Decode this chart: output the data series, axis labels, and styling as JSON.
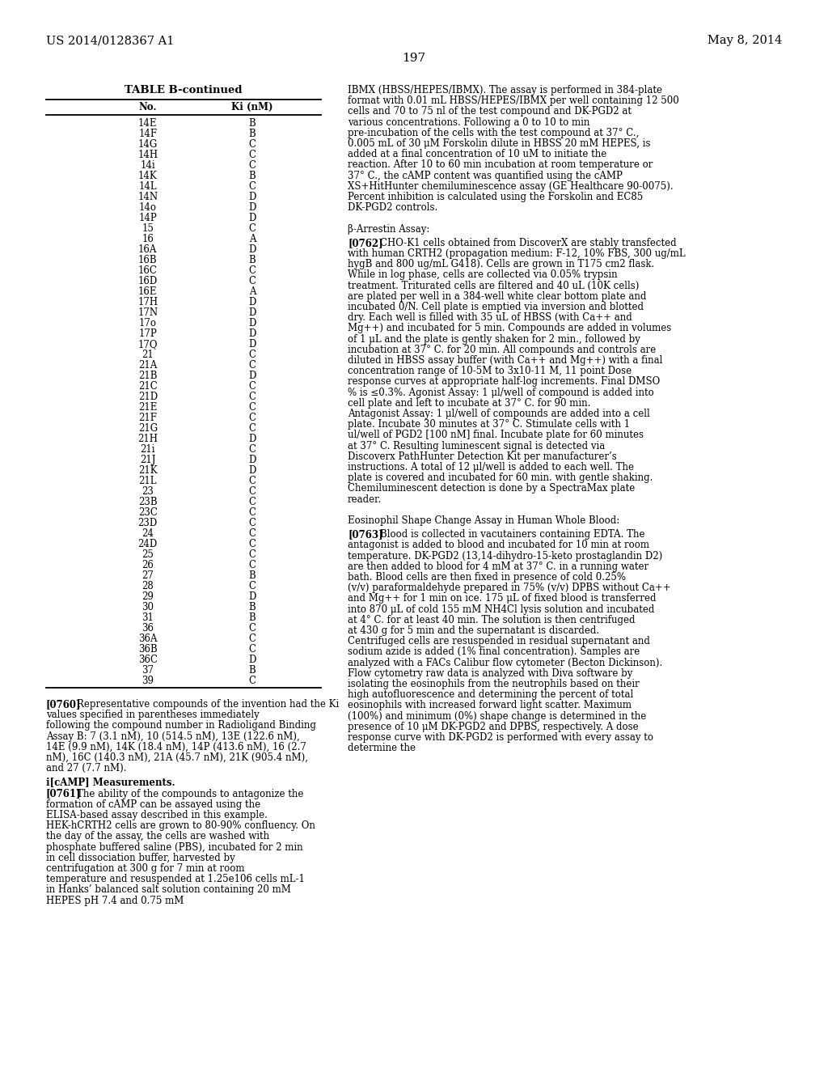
{
  "header_left": "US 2014/0128367 A1",
  "header_right": "May 8, 2014",
  "page_number": "197",
  "table_title": "TABLE B-continued",
  "col1_header": "No.",
  "col2_header": "Ki (nM)",
  "table_data": [
    [
      "14E",
      "B"
    ],
    [
      "14F",
      "B"
    ],
    [
      "14G",
      "C"
    ],
    [
      "14H",
      "C"
    ],
    [
      "14i",
      "C"
    ],
    [
      "14K",
      "B"
    ],
    [
      "14L",
      "C"
    ],
    [
      "14N",
      "D"
    ],
    [
      "14o",
      "D"
    ],
    [
      "14P",
      "D"
    ],
    [
      "15",
      "C"
    ],
    [
      "16",
      "A"
    ],
    [
      "16A",
      "D"
    ],
    [
      "16B",
      "B"
    ],
    [
      "16C",
      "C"
    ],
    [
      "16D",
      "C"
    ],
    [
      "16E",
      "A"
    ],
    [
      "17H",
      "D"
    ],
    [
      "17N",
      "D"
    ],
    [
      "17o",
      "D"
    ],
    [
      "17P",
      "D"
    ],
    [
      "17Q",
      "D"
    ],
    [
      "21",
      "C"
    ],
    [
      "21A",
      "C"
    ],
    [
      "21B",
      "D"
    ],
    [
      "21C",
      "C"
    ],
    [
      "21D",
      "C"
    ],
    [
      "21E",
      "C"
    ],
    [
      "21F",
      "C"
    ],
    [
      "21G",
      "C"
    ],
    [
      "21H",
      "D"
    ],
    [
      "21i",
      "C"
    ],
    [
      "21J",
      "D"
    ],
    [
      "21K",
      "D"
    ],
    [
      "21L",
      "C"
    ],
    [
      "23",
      "C"
    ],
    [
      "23B",
      "C"
    ],
    [
      "23C",
      "C"
    ],
    [
      "23D",
      "C"
    ],
    [
      "24",
      "C"
    ],
    [
      "24D",
      "C"
    ],
    [
      "25",
      "C"
    ],
    [
      "26",
      "C"
    ],
    [
      "27",
      "B"
    ],
    [
      "28",
      "C"
    ],
    [
      "29",
      "D"
    ],
    [
      "30",
      "B"
    ],
    [
      "31",
      "B"
    ],
    [
      "36",
      "C"
    ],
    [
      "36A",
      "C"
    ],
    [
      "36B",
      "C"
    ],
    [
      "36C",
      "D"
    ],
    [
      "37",
      "B"
    ],
    [
      "39",
      "C"
    ]
  ],
  "right_col_top_text": "IBMX (HBSS/HEPES/IBMX). The assay is performed in 384-plate format with 0.01 mL HBSS/HEPES/IBMX per well containing 12 500 cells and 70 to 75 nl of the test compound and DK-PGD2 at various concentrations. Following a 0 to 10 to min pre-incubation of the cells with the test compound at 37° C., 0.005 mL of 30 μM Forskolin dilute in HBSS 20 mM HEPES, is added at a final concentration of 10 uM to initiate the reaction. After 10 to 60 min incubation at room temperature or 37° C., the cAMP content was quantified using the cAMP XS+HitHunter chemiluminescence assay (GE Healthcare 90-0075). Percent inhibition is calculated using the Forskolin and EC85 DK-PGD2 controls.",
  "beta_arrestin_header": "β-Arrestin Assay:",
  "p762_label": "[0762]",
  "p762_text": "CHO-K1 cells obtained from DiscoverX are stably transfected with human CRTH2 (propagation medium: F-12, 10% FBS, 300 ug/mL hygB and 800 ug/mL G418). Cells are grown in T175 cm2 flask. While in log phase, cells are collected via 0.05% trypsin treatment. Triturated cells are filtered and 40 uL (10K cells) are plated per well in a 384-well white clear bottom plate and incubated 0/N. Cell plate is emptied via inversion and blotted dry. Each well is filled with 35 uL of HBSS (with Ca++ and Mg++) and incubated for 5 min. Compounds are added in volumes of 1 μL and the plate is gently shaken for 2 min., followed by incubation at 37° C. for 20 min. All compounds and controls are diluted in HBSS assay buffer (with Ca++ and Mg++) with a final concentration range of 10-5M to 3x10-11 M, 11 point Dose response curves at appropriate half-log increments. Final DMSO % is ≤0.3%. Agonist Assay: 1 μl/well of compound is added into cell plate and left to incubate at 37° C. for 90 min. Antagonist Assay: 1 μl/well of compounds are added into a cell plate. Incubate 30 minutes at 37° C. Stimulate cells with 1 ul/well of PGD2 [100 nM] final. Incubate plate for 60 minutes at 37° C. Resulting luminescent signal is detected via Discoverx PathHunter Detection Kit per manufacturer’s instructions. A total of 12 μl/well is added to each well. The plate is covered and incubated for 60 min. with gentle shaking. Chemiluminescent detection is done by a SpectraMax plate reader.",
  "eosinophil_header": "Eosinophil Shape Change Assay in Human Whole Blood:",
  "p763_label": "[0763]",
  "p763_text": "Blood is collected in vacutainers containing EDTA. The antagonist is added to blood and incubated for 10 min at room temperature. DK-PGD2 (13,14-dihydro-15-keto prostaglandin D2) are then added to blood for 4 mM at 37° C. in a running water bath. Blood cells are then fixed in presence of cold 0.25% (v/v) paraformaldehyde prepared in 75% (v/v) DPBS without Ca++ and Mg++ for 1 min on ice. 175 μL of fixed blood is transferred into 870 μL of cold 155 mM NH4Cl lysis solution and incubated at 4° C. for at least 40 min. The solution is then centrifuged at 430 g for 5 min and the supernatant is discarded. Centrifuged cells are resuspended in residual supernatant and sodium azide is added (1% final concentration). Samples are analyzed with a FACs Calibur flow cytometer (Becton Dickinson). Flow cytometry raw data is analyzed with Diva software by isolating the eosinophils from the neutrophils based on their high autofluorescence and determining the percent of total eosinophils with increased forward light scatter. Maximum (100%) and minimum (0%) shape change is determined in the presence of 10 μM DK-PGD2 and DPBS, respectively. A dose response curve with DK-PGD2 is performed with every assay to determine the",
  "p760_label": "[0760]",
  "p760_text": "Representative compounds of the invention had the Ki values specified in parentheses immediately following the compound number in Radioligand Binding Assay B: 7 (3.1 nM), 10 (514.5 nM), 13E (122.6 nM), 14E (9.9 nM), 14K (18.4 nM), 14P (413.6 nM), 16 (2.7 nM), 16C (140.3 nM), 21A (45.7 nM), 21K (905.4 nM), and 27 (7.7 nM).",
  "icAMP_header": "i[cAMP] Measurements.",
  "p761_label": "[0761]",
  "p761_text": "The ability of the compounds to antagonize the formation of cAMP can be assayed using the ELISA-based assay described in this example. HEK-hCRTH2 cells are grown to 80-90% confluency. On the day of the assay, the cells are washed with phosphate buffered saline (PBS), incubated for 2 min in cell dissociation buffer, harvested by centrifugation at 300 g for 7 min at room temperature and resuspended at 1.25e106 cells mL-1 in Hanks’ balanced salt solution containing 20 mM HEPES pH 7.4 and 0.75 mM"
}
